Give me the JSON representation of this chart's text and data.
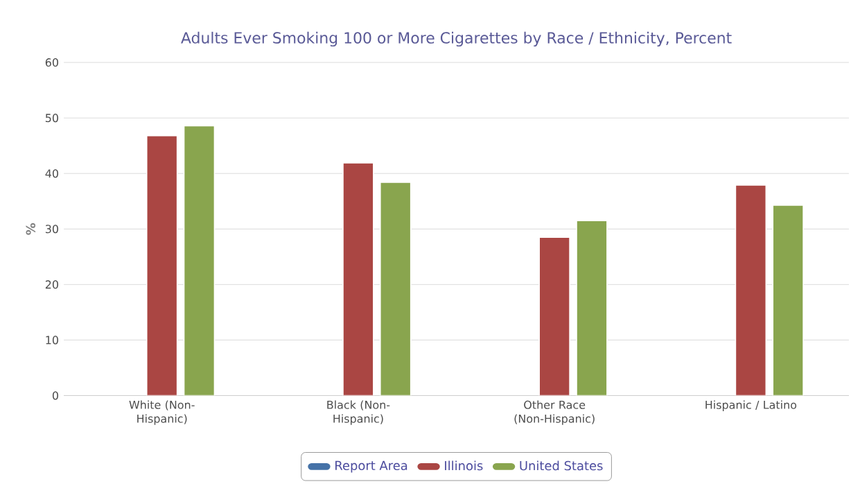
{
  "chart_data": {
    "type": "bar",
    "title": "Adults Ever Smoking 100 or More Cigarettes by Race / Ethnicity, Percent",
    "ylabel": "%",
    "categories": [
      "White (Non-Hispanic)",
      "Black (Non-Hispanic)",
      "Other Race (Non-Hispanic)",
      "Hispanic / Latino"
    ],
    "series": [
      {
        "name": "Report Area",
        "color": "#4572a7",
        "values": [
          null,
          null,
          null,
          null
        ]
      },
      {
        "name": "Illinois",
        "color": "#aa4643",
        "values": [
          46.8,
          41.9,
          28.5,
          37.9
        ]
      },
      {
        "name": "United States",
        "color": "#89a54e",
        "values": [
          48.6,
          38.4,
          31.5,
          34.3
        ]
      }
    ],
    "ylim": [
      0,
      60
    ],
    "yticks": [
      0,
      10,
      20,
      30,
      40,
      50,
      60
    ],
    "grid": "y",
    "legend": "bottom"
  }
}
